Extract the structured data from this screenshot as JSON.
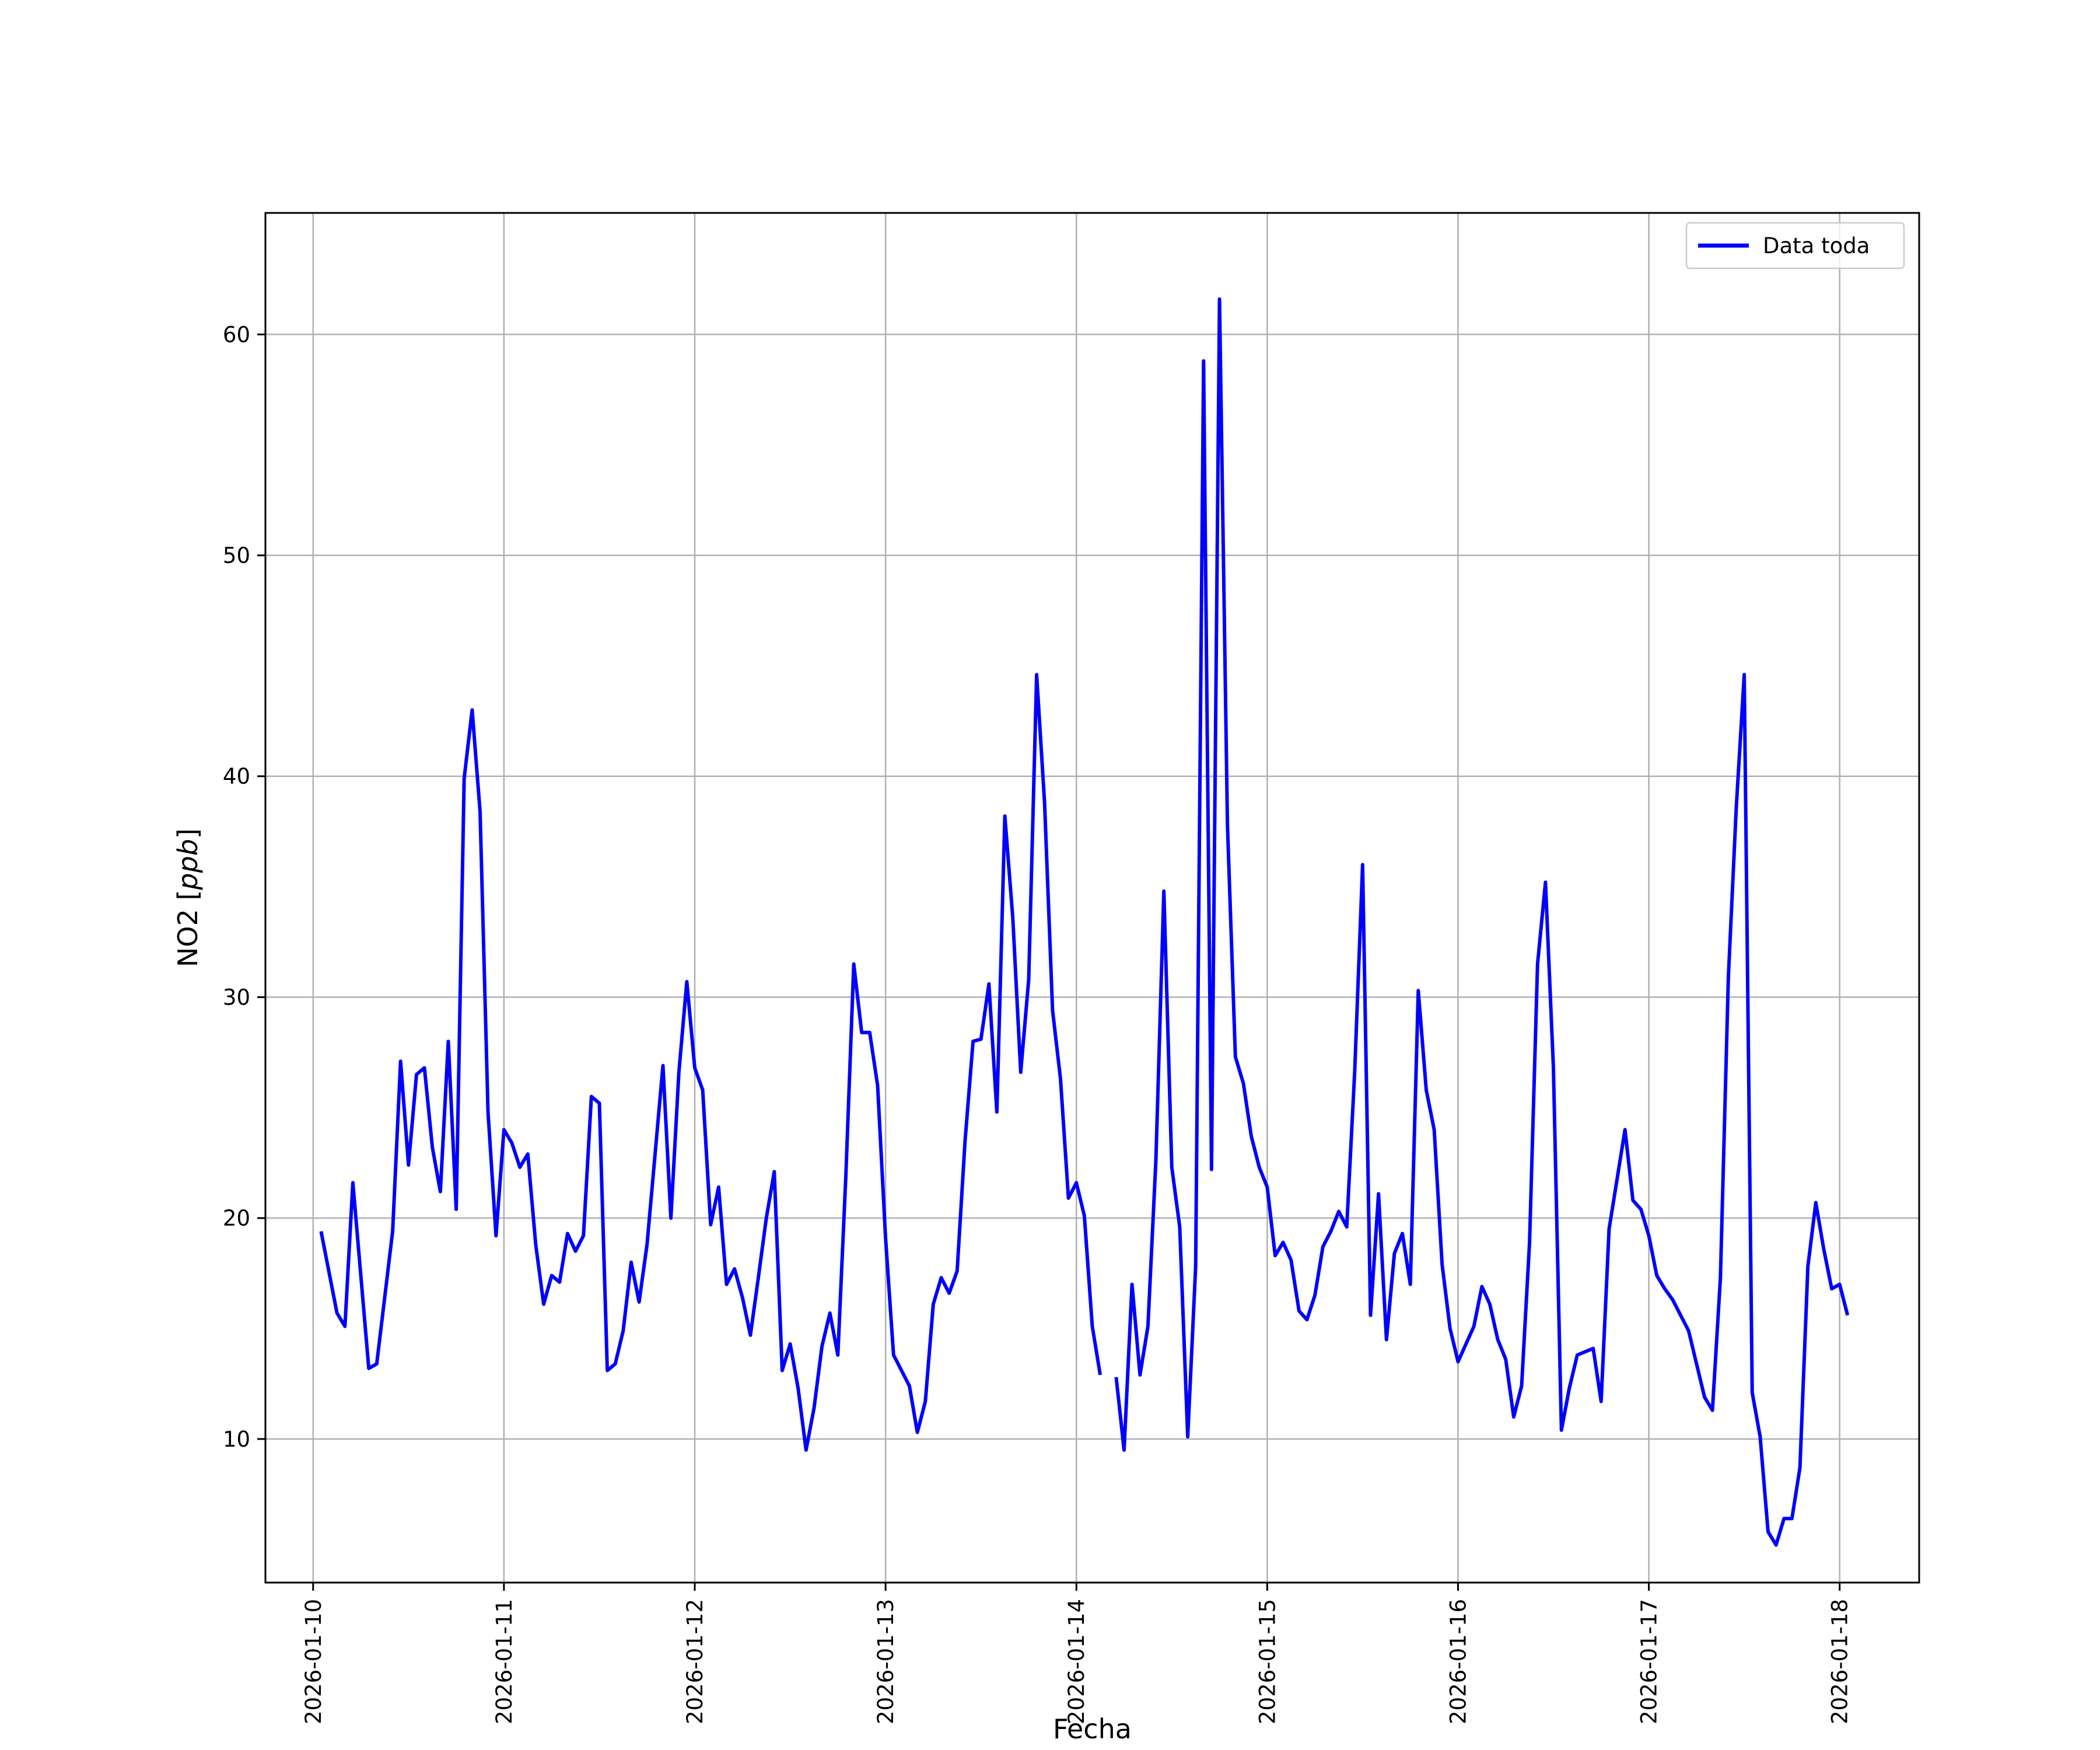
{
  "chart_data": {
    "type": "line",
    "title": "",
    "xlabel": "Fecha",
    "ylabel": "NO2 [ppb]",
    "ylabel_prefix": "NO2 [",
    "ylabel_unit": "ppb",
    "ylabel_suffix": "]",
    "x_type": "datetime",
    "xlim": [
      "2026-01-09T18:00",
      "2026-01-18T10:00"
    ],
    "ylim": [
      3.5,
      65.5
    ],
    "x_ticks": [
      "2026-01-10",
      "2026-01-11",
      "2026-01-12",
      "2026-01-13",
      "2026-01-14",
      "2026-01-15",
      "2026-01-16",
      "2026-01-17",
      "2026-01-18"
    ],
    "y_ticks": [
      10,
      20,
      30,
      40,
      50,
      60
    ],
    "grid": true,
    "legend": {
      "position": "top-right",
      "entries": [
        "Data toda"
      ]
    },
    "series": [
      {
        "name": "Data toda",
        "color": "#0000ff",
        "points": [
          [
            "2026-01-10T01:00",
            19.4
          ],
          [
            "2026-01-10T03:00",
            15.7
          ],
          [
            "2026-01-10T04:00",
            15.1
          ],
          [
            "2026-01-10T05:00",
            21.6
          ],
          [
            "2026-01-10T07:00",
            13.2
          ],
          [
            "2026-01-10T08:00",
            13.4
          ],
          [
            "2026-01-10T10:00",
            19.4
          ],
          [
            "2026-01-10T11:00",
            27.1
          ],
          [
            "2026-01-10T12:00",
            22.4
          ],
          [
            "2026-01-10T13:00",
            26.5
          ],
          [
            "2026-01-10T14:00",
            26.8
          ],
          [
            "2026-01-10T15:00",
            23.2
          ],
          [
            "2026-01-10T16:00",
            21.2
          ],
          [
            "2026-01-10T17:00",
            28.0
          ],
          [
            "2026-01-10T18:00",
            20.4
          ],
          [
            "2026-01-10T19:00",
            39.9
          ],
          [
            "2026-01-10T20:00",
            43.0
          ],
          [
            "2026-01-10T21:00",
            38.4
          ],
          [
            "2026-01-10T22:00",
            24.8
          ],
          [
            "2026-01-10T23:00",
            19.2
          ],
          [
            "2026-01-11T00:00",
            24.0
          ],
          [
            "2026-01-11T01:00",
            23.4
          ],
          [
            "2026-01-11T02:00",
            22.3
          ],
          [
            "2026-01-11T03:00",
            22.9
          ],
          [
            "2026-01-11T04:00",
            18.8
          ],
          [
            "2026-01-11T05:00",
            16.1
          ],
          [
            "2026-01-11T06:00",
            17.4
          ],
          [
            "2026-01-11T07:00",
            17.1
          ],
          [
            "2026-01-11T08:00",
            19.3
          ],
          [
            "2026-01-11T09:00",
            18.5
          ],
          [
            "2026-01-11T10:00",
            19.2
          ],
          [
            "2026-01-11T11:00",
            25.5
          ],
          [
            "2026-01-11T12:00",
            25.2
          ],
          [
            "2026-01-11T13:00",
            13.1
          ],
          [
            "2026-01-11T14:00",
            13.4
          ],
          [
            "2026-01-11T15:00",
            14.9
          ],
          [
            "2026-01-11T16:00",
            18.0
          ],
          [
            "2026-01-11T17:00",
            16.2
          ],
          [
            "2026-01-11T18:00",
            18.8
          ],
          [
            "2026-01-11T20:00",
            26.9
          ],
          [
            "2026-01-11T21:00",
            20.0
          ],
          [
            "2026-01-11T22:00",
            26.6
          ],
          [
            "2026-01-11T23:00",
            30.7
          ],
          [
            "2026-01-12T00:00",
            26.8
          ],
          [
            "2026-01-12T01:00",
            25.8
          ],
          [
            "2026-01-12T02:00",
            19.7
          ],
          [
            "2026-01-12T03:00",
            21.4
          ],
          [
            "2026-01-12T04:00",
            17.0
          ],
          [
            "2026-01-12T05:00",
            17.7
          ],
          [
            "2026-01-12T06:00",
            16.4
          ],
          [
            "2026-01-12T07:00",
            14.7
          ],
          [
            "2026-01-12T08:00",
            17.3
          ],
          [
            "2026-01-12T09:00",
            20.0
          ],
          [
            "2026-01-12T10:00",
            22.1
          ],
          [
            "2026-01-12T11:00",
            13.1
          ],
          [
            "2026-01-12T12:00",
            14.3
          ],
          [
            "2026-01-12T13:00",
            12.3
          ],
          [
            "2026-01-12T14:00",
            9.5
          ],
          [
            "2026-01-12T15:00",
            11.4
          ],
          [
            "2026-01-12T16:00",
            14.2
          ],
          [
            "2026-01-12T17:00",
            15.7
          ],
          [
            "2026-01-12T18:00",
            13.8
          ],
          [
            "2026-01-12T19:00",
            21.9
          ],
          [
            "2026-01-12T20:00",
            31.5
          ],
          [
            "2026-01-12T21:00",
            28.4
          ],
          [
            "2026-01-12T22:00",
            28.4
          ],
          [
            "2026-01-12T23:00",
            26.0
          ],
          [
            "2026-01-13T00:00",
            19.1
          ],
          [
            "2026-01-13T01:00",
            13.8
          ],
          [
            "2026-01-13T03:00",
            12.4
          ],
          [
            "2026-01-13T04:00",
            10.3
          ],
          [
            "2026-01-13T05:00",
            11.7
          ],
          [
            "2026-01-13T06:00",
            16.1
          ],
          [
            "2026-01-13T07:00",
            17.3
          ],
          [
            "2026-01-13T08:00",
            16.6
          ],
          [
            "2026-01-13T09:00",
            17.6
          ],
          [
            "2026-01-13T10:00",
            23.5
          ],
          [
            "2026-01-13T11:00",
            28.0
          ],
          [
            "2026-01-13T12:00",
            28.1
          ],
          [
            "2026-01-13T13:00",
            30.6
          ],
          [
            "2026-01-13T14:00",
            24.8
          ],
          [
            "2026-01-13T15:00",
            38.2
          ],
          [
            "2026-01-13T16:00",
            33.6
          ],
          [
            "2026-01-13T17:00",
            26.6
          ],
          [
            "2026-01-13T18:00",
            30.8
          ],
          [
            "2026-01-13T19:00",
            44.6
          ],
          [
            "2026-01-13T20:00",
            38.8
          ],
          [
            "2026-01-13T21:00",
            29.4
          ],
          [
            "2026-01-13T22:00",
            26.3
          ],
          [
            "2026-01-13T23:00",
            20.9
          ],
          [
            "2026-01-14T00:00",
            21.6
          ],
          [
            "2026-01-14T01:00",
            20.1
          ],
          [
            "2026-01-14T02:00",
            15.1
          ],
          [
            "2026-01-14T03:00",
            12.9
          ],
          null,
          [
            "2026-01-14T05:00",
            12.8
          ],
          [
            "2026-01-14T06:00",
            9.5
          ],
          [
            "2026-01-14T07:00",
            17.0
          ],
          [
            "2026-01-14T08:00",
            12.9
          ],
          [
            "2026-01-14T09:00",
            15.1
          ],
          [
            "2026-01-14T10:00",
            22.6
          ],
          [
            "2026-01-14T11:00",
            34.8
          ],
          [
            "2026-01-14T12:00",
            22.3
          ],
          [
            "2026-01-14T13:00",
            19.6
          ],
          [
            "2026-01-14T14:00",
            10.1
          ],
          [
            "2026-01-14T15:00",
            17.8
          ],
          [
            "2026-01-14T16:00",
            58.8
          ],
          [
            "2026-01-14T17:00",
            22.2
          ],
          [
            "2026-01-14T18:00",
            61.6
          ],
          [
            "2026-01-14T19:00",
            37.8
          ],
          [
            "2026-01-14T20:00",
            27.3
          ],
          [
            "2026-01-14T21:00",
            26.1
          ],
          [
            "2026-01-14T22:00",
            23.7
          ],
          [
            "2026-01-14T23:00",
            22.3
          ],
          [
            "2026-01-15T00:00",
            21.4
          ],
          [
            "2026-01-15T01:00",
            18.3
          ],
          [
            "2026-01-15T02:00",
            18.9
          ],
          [
            "2026-01-15T03:00",
            18.1
          ],
          [
            "2026-01-15T04:00",
            15.8
          ],
          [
            "2026-01-15T05:00",
            15.4
          ],
          [
            "2026-01-15T06:00",
            16.5
          ],
          [
            "2026-01-15T07:00",
            18.7
          ],
          [
            "2026-01-15T08:00",
            19.4
          ],
          [
            "2026-01-15T09:00",
            20.3
          ],
          [
            "2026-01-15T10:00",
            19.6
          ],
          [
            "2026-01-15T11:00",
            26.6
          ],
          [
            "2026-01-15T12:00",
            36.0
          ],
          [
            "2026-01-15T13:00",
            15.6
          ],
          [
            "2026-01-15T14:00",
            21.1
          ],
          [
            "2026-01-15T15:00",
            14.5
          ],
          [
            "2026-01-15T16:00",
            18.4
          ],
          [
            "2026-01-15T17:00",
            19.3
          ],
          [
            "2026-01-15T18:00",
            17.0
          ],
          [
            "2026-01-15T19:00",
            30.3
          ],
          [
            "2026-01-15T20:00",
            25.8
          ],
          [
            "2026-01-15T21:00",
            24.0
          ],
          [
            "2026-01-15T22:00",
            17.9
          ],
          [
            "2026-01-15T23:00",
            15.0
          ],
          [
            "2026-01-16T00:00",
            13.5
          ],
          [
            "2026-01-16T02:00",
            15.1
          ],
          [
            "2026-01-16T03:00",
            16.9
          ],
          [
            "2026-01-16T04:00",
            16.1
          ],
          [
            "2026-01-16T05:00",
            14.5
          ],
          [
            "2026-01-16T06:00",
            13.6
          ],
          [
            "2026-01-16T07:00",
            11.0
          ],
          [
            "2026-01-16T08:00",
            12.4
          ],
          [
            "2026-01-16T09:00",
            18.9
          ],
          [
            "2026-01-16T10:00",
            31.5
          ],
          [
            "2026-01-16T11:00",
            35.2
          ],
          [
            "2026-01-16T12:00",
            26.8
          ],
          [
            "2026-01-16T13:00",
            10.4
          ],
          [
            "2026-01-16T14:00",
            12.3
          ],
          [
            "2026-01-16T15:00",
            13.8
          ],
          [
            "2026-01-16T17:00",
            14.1
          ],
          [
            "2026-01-16T18:00",
            11.7
          ],
          [
            "2026-01-16T19:00",
            19.5
          ],
          [
            "2026-01-16T21:00",
            24.0
          ],
          [
            "2026-01-16T22:00",
            20.8
          ],
          [
            "2026-01-16T23:00",
            20.4
          ],
          [
            "2026-01-17T00:00",
            19.2
          ],
          [
            "2026-01-17T01:00",
            17.4
          ],
          [
            "2026-01-17T02:00",
            16.8
          ],
          [
            "2026-01-17T03:00",
            16.3
          ],
          [
            "2026-01-17T05:00",
            14.9
          ],
          [
            "2026-01-17T06:00",
            13.4
          ],
          [
            "2026-01-17T07:00",
            11.9
          ],
          [
            "2026-01-17T08:00",
            11.3
          ],
          [
            "2026-01-17T09:00",
            17.3
          ],
          [
            "2026-01-17T10:00",
            30.9
          ],
          [
            "2026-01-17T11:00",
            38.6
          ],
          [
            "2026-01-17T12:00",
            44.6
          ],
          [
            "2026-01-17T13:00",
            12.1
          ],
          [
            "2026-01-17T14:00",
            10.1
          ],
          [
            "2026-01-17T15:00",
            5.8
          ],
          [
            "2026-01-17T16:00",
            5.2
          ],
          [
            "2026-01-17T17:00",
            6.4
          ],
          [
            "2026-01-17T18:00",
            6.4
          ],
          [
            "2026-01-17T19:00",
            8.7
          ],
          [
            "2026-01-17T20:00",
            17.8
          ],
          [
            "2026-01-17T21:00",
            20.7
          ],
          [
            "2026-01-17T22:00",
            18.6
          ],
          [
            "2026-01-17T23:00",
            16.8
          ],
          [
            "2026-01-18T00:00",
            17.0
          ],
          [
            "2026-01-18T01:00",
            15.6
          ]
        ]
      }
    ]
  }
}
